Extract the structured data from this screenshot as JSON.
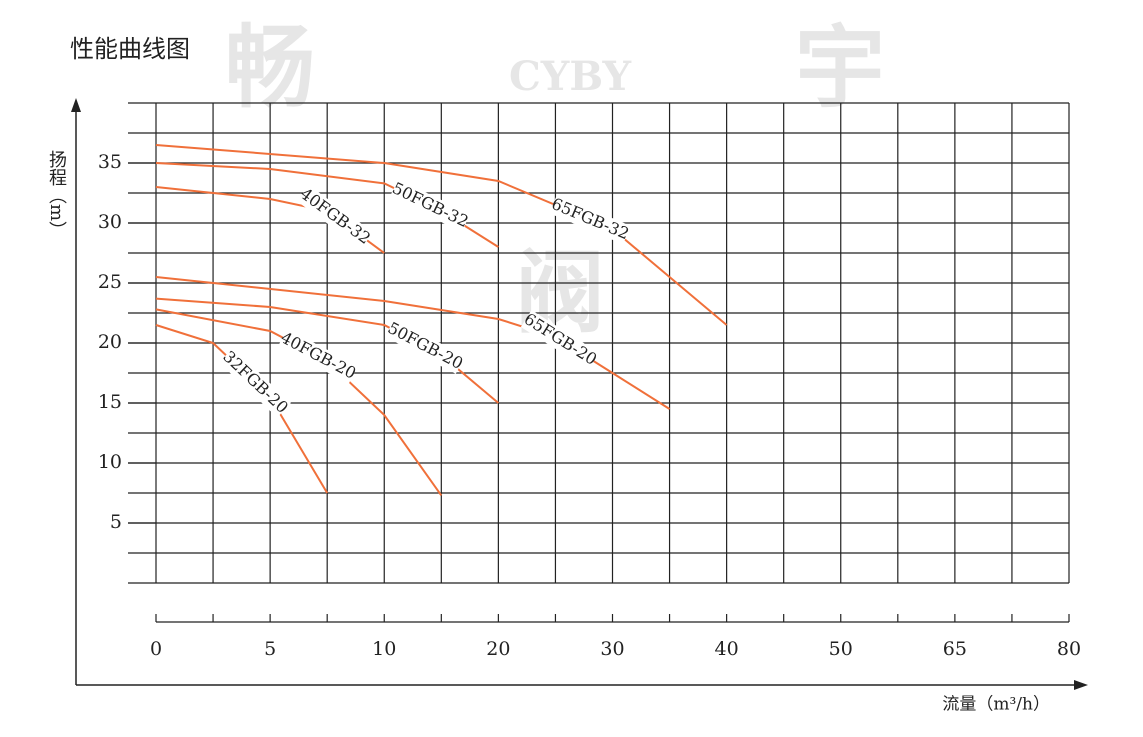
{
  "chart_data": {
    "type": "line",
    "title": "性能曲线图",
    "y_label": "扬程（m）",
    "x_label": "流量（m³/h）",
    "watermark": [
      "畅",
      "CYBY",
      "宇",
      "阀"
    ],
    "xlim": [
      0,
      80
    ],
    "xticks": [
      0,
      5,
      10,
      20,
      30,
      40,
      50,
      65,
      80
    ],
    "ylim": [
      0,
      40
    ],
    "yticks": [
      5,
      10,
      15,
      20,
      25,
      30,
      35
    ],
    "grid": true,
    "series": [
      {
        "name": "65FGB-32",
        "color": "#f0703a",
        "x": [
          0,
          10,
          20,
          30,
          35,
          40
        ],
        "values": [
          36.5,
          35,
          33.5,
          29.5,
          25.5,
          21.5
        ]
      },
      {
        "name": "50FGB-32",
        "color": "#f0703a",
        "x": [
          0,
          5,
          10,
          15,
          20
        ],
        "values": [
          35,
          34.5,
          33.3,
          31,
          28
        ]
      },
      {
        "name": "40FGB-32",
        "color": "#f0703a",
        "x": [
          0,
          5,
          7.5,
          10
        ],
        "values": [
          33,
          32,
          31,
          27.5
        ]
      },
      {
        "name": "65FGB-20",
        "color": "#f0703a",
        "x": [
          0,
          10,
          20,
          25,
          30,
          35
        ],
        "values": [
          25.5,
          23.5,
          22,
          20.5,
          17.5,
          14.5
        ]
      },
      {
        "name": "50FGB-20",
        "color": "#f0703a",
        "x": [
          0,
          5,
          10,
          15,
          20
        ],
        "values": [
          23.7,
          23,
          21.5,
          19,
          15
        ]
      },
      {
        "name": "40FGB-20",
        "color": "#f0703a",
        "x": [
          0,
          5,
          7.5,
          10,
          15
        ],
        "values": [
          22.8,
          21,
          18.5,
          14,
          7.3
        ]
      },
      {
        "name": "32FGB-20",
        "color": "#f0703a",
        "x": [
          0,
          2.5,
          5,
          7.5
        ],
        "values": [
          21.5,
          20,
          15.5,
          7.5
        ]
      }
    ]
  }
}
